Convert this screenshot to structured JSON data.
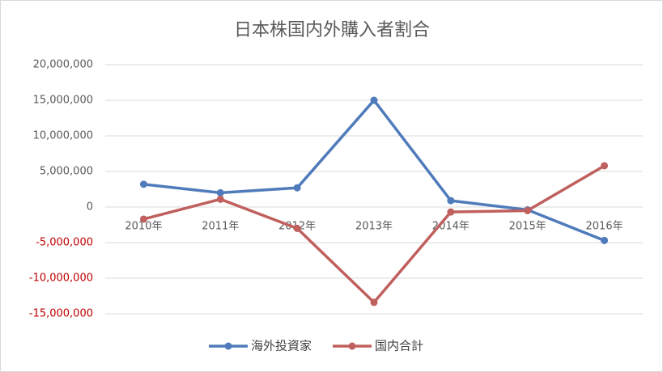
{
  "chart_data": {
    "type": "line",
    "title": "日本株国内外購入者割合",
    "categories": [
      "2010年",
      "2011年",
      "2012年",
      "2013年",
      "2014年",
      "2015年",
      "2016年"
    ],
    "series": [
      {
        "name": "海外投資家",
        "color": "#4f7bbb",
        "values": [
          3200000,
          2000000,
          2700000,
          15000000,
          900000,
          -400000,
          -4700000
        ]
      },
      {
        "name": "国内合計",
        "color": "#c0605e",
        "values": [
          -1700000,
          1100000,
          -3000000,
          -13400000,
          -700000,
          -500000,
          5800000
        ]
      }
    ],
    "ylim": [
      -15000000,
      20000000
    ],
    "yticks": [
      {
        "value": -15000000,
        "label": "-15,000,000"
      },
      {
        "value": -10000000,
        "label": "-10,000,000"
      },
      {
        "value": -5000000,
        "label": "-5,000,000"
      },
      0,
      {
        "value": 5000000,
        "label": "5,000,000"
      },
      {
        "value": 10000000,
        "label": "10,000,000"
      },
      {
        "value": 15000000,
        "label": "15,000,000"
      },
      {
        "value": 20000000,
        "label": "20,000,000"
      }
    ],
    "negative_tick_color": "#c00000",
    "grid": true,
    "legend": "bottom"
  }
}
